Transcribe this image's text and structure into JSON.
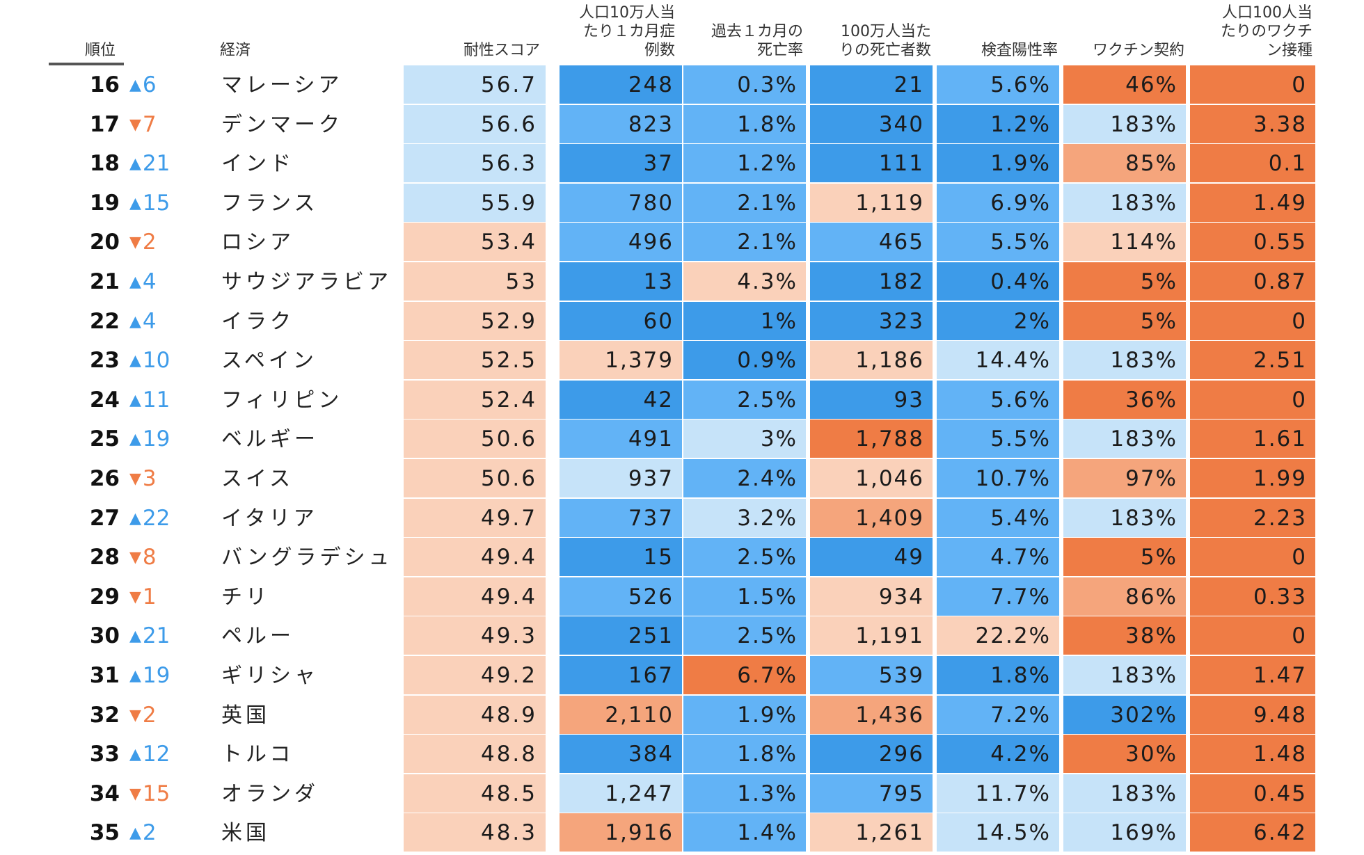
{
  "chart_data": {
    "type": "table",
    "columns": [
      {
        "key": "rank",
        "label": "順位"
      },
      {
        "key": "economy",
        "label": "経済"
      },
      {
        "key": "score",
        "label": "耐性スコア"
      },
      {
        "key": "cases",
        "label": "人口10万人当\nたり１カ月症\n例数"
      },
      {
        "key": "cfr",
        "label": "過去１カ月の\n死亡率"
      },
      {
        "key": "deaths",
        "label": "100万人当た\nりの死亡者数"
      },
      {
        "key": "positivity",
        "label": "検査陽性率"
      },
      {
        "key": "vaccine_deals",
        "label": "ワクチン契約"
      },
      {
        "key": "vaccinations",
        "label": "人口100人当\nたりのワクチ\nン接種"
      }
    ],
    "rows": [
      {
        "rank": "16",
        "change": "6",
        "direction": "up",
        "economy": "マレーシア",
        "score": "56.7",
        "cases": "248",
        "cfr": "0.3%",
        "deaths": "21",
        "positivity": "5.6%",
        "vaccine_deals": "46%",
        "vaccinations": "0",
        "colors": [
          "#c6e3f9",
          "#3d9be9",
          "#62b3f6",
          "#3d9be9",
          "#62b3f6",
          "#ef7c45",
          "#ef7c45"
        ]
      },
      {
        "rank": "17",
        "change": "7",
        "direction": "down",
        "economy": "デンマーク",
        "score": "56.6",
        "cases": "823",
        "cfr": "1.8%",
        "deaths": "340",
        "positivity": "1.2%",
        "vaccine_deals": "183%",
        "vaccinations": "3.38",
        "colors": [
          "#c6e3f9",
          "#62b3f6",
          "#62b3f6",
          "#3d9be9",
          "#3d9be9",
          "#c6e3f9",
          "#ef7c45"
        ]
      },
      {
        "rank": "18",
        "change": "21",
        "direction": "up",
        "economy": "インド",
        "score": "56.3",
        "cases": "37",
        "cfr": "1.2%",
        "deaths": "111",
        "positivity": "1.9%",
        "vaccine_deals": "85%",
        "vaccinations": "0.1",
        "colors": [
          "#c6e3f9",
          "#3d9be9",
          "#62b3f6",
          "#3d9be9",
          "#3d9be9",
          "#f5a57c",
          "#ef7c45"
        ]
      },
      {
        "rank": "19",
        "change": "15",
        "direction": "up",
        "economy": "フランス",
        "score": "55.9",
        "cases": "780",
        "cfr": "2.1%",
        "deaths": "1,119",
        "positivity": "6.9%",
        "vaccine_deals": "183%",
        "vaccinations": "1.49",
        "colors": [
          "#c6e3f9",
          "#62b3f6",
          "#62b3f6",
          "#fad1ba",
          "#62b3f6",
          "#c6e3f9",
          "#ef7c45"
        ]
      },
      {
        "rank": "20",
        "change": "2",
        "direction": "down",
        "economy": "ロシア",
        "score": "53.4",
        "cases": "496",
        "cfr": "2.1%",
        "deaths": "465",
        "positivity": "5.5%",
        "vaccine_deals": "114%",
        "vaccinations": "0.55",
        "colors": [
          "#fad1ba",
          "#62b3f6",
          "#62b3f6",
          "#62b3f6",
          "#62b3f6",
          "#fad1ba",
          "#ef7c45"
        ]
      },
      {
        "rank": "21",
        "change": "4",
        "direction": "up",
        "economy": "サウジアラビア",
        "score": "53",
        "cases": "13",
        "cfr": "4.3%",
        "deaths": "182",
        "positivity": "0.4%",
        "vaccine_deals": "5%",
        "vaccinations": "0.87",
        "colors": [
          "#fad1ba",
          "#3d9be9",
          "#fad1ba",
          "#3d9be9",
          "#3d9be9",
          "#ef7c45",
          "#ef7c45"
        ]
      },
      {
        "rank": "22",
        "change": "4",
        "direction": "up",
        "economy": "イラク",
        "score": "52.9",
        "cases": "60",
        "cfr": "1%",
        "deaths": "323",
        "positivity": "2%",
        "vaccine_deals": "5%",
        "vaccinations": "0",
        "colors": [
          "#fad1ba",
          "#3d9be9",
          "#3d9be9",
          "#3d9be9",
          "#3d9be9",
          "#ef7c45",
          "#ef7c45"
        ]
      },
      {
        "rank": "23",
        "change": "10",
        "direction": "up",
        "economy": "スペイン",
        "score": "52.5",
        "cases": "1,379",
        "cfr": "0.9%",
        "deaths": "1,186",
        "positivity": "14.4%",
        "vaccine_deals": "183%",
        "vaccinations": "2.51",
        "colors": [
          "#fad1ba",
          "#fad1ba",
          "#3d9be9",
          "#fad1ba",
          "#c6e3f9",
          "#c6e3f9",
          "#ef7c45"
        ]
      },
      {
        "rank": "24",
        "change": "11",
        "direction": "up",
        "economy": "フィリピン",
        "score": "52.4",
        "cases": "42",
        "cfr": "2.5%",
        "deaths": "93",
        "positivity": "5.6%",
        "vaccine_deals": "36%",
        "vaccinations": "0",
        "colors": [
          "#fad1ba",
          "#3d9be9",
          "#62b3f6",
          "#3d9be9",
          "#62b3f6",
          "#ef7c45",
          "#ef7c45"
        ]
      },
      {
        "rank": "25",
        "change": "19",
        "direction": "up",
        "economy": "ベルギー",
        "score": "50.6",
        "cases": "491",
        "cfr": "3%",
        "deaths": "1,788",
        "positivity": "5.5%",
        "vaccine_deals": "183%",
        "vaccinations": "1.61",
        "colors": [
          "#fad1ba",
          "#62b3f6",
          "#c6e3f9",
          "#ef7c45",
          "#62b3f6",
          "#c6e3f9",
          "#ef7c45"
        ]
      },
      {
        "rank": "26",
        "change": "3",
        "direction": "down",
        "economy": "スイス",
        "score": "50.6",
        "cases": "937",
        "cfr": "2.4%",
        "deaths": "1,046",
        "positivity": "10.7%",
        "vaccine_deals": "97%",
        "vaccinations": "1.99",
        "colors": [
          "#fad1ba",
          "#c6e3f9",
          "#62b3f6",
          "#fad1ba",
          "#62b3f6",
          "#f5a57c",
          "#ef7c45"
        ]
      },
      {
        "rank": "27",
        "change": "22",
        "direction": "up",
        "economy": "イタリア",
        "score": "49.7",
        "cases": "737",
        "cfr": "3.2%",
        "deaths": "1,409",
        "positivity": "5.4%",
        "vaccine_deals": "183%",
        "vaccinations": "2.23",
        "colors": [
          "#fad1ba",
          "#62b3f6",
          "#c6e3f9",
          "#f5a57c",
          "#62b3f6",
          "#c6e3f9",
          "#ef7c45"
        ]
      },
      {
        "rank": "28",
        "change": "8",
        "direction": "down",
        "economy": "バングラデシュ",
        "score": "49.4",
        "cases": "15",
        "cfr": "2.5%",
        "deaths": "49",
        "positivity": "4.7%",
        "vaccine_deals": "5%",
        "vaccinations": "0",
        "colors": [
          "#fad1ba",
          "#3d9be9",
          "#62b3f6",
          "#3d9be9",
          "#62b3f6",
          "#ef7c45",
          "#ef7c45"
        ]
      },
      {
        "rank": "29",
        "change": "1",
        "direction": "down",
        "economy": "チリ",
        "score": "49.4",
        "cases": "526",
        "cfr": "1.5%",
        "deaths": "934",
        "positivity": "7.7%",
        "vaccine_deals": "86%",
        "vaccinations": "0.33",
        "colors": [
          "#fad1ba",
          "#62b3f6",
          "#62b3f6",
          "#fad1ba",
          "#62b3f6",
          "#f5a57c",
          "#ef7c45"
        ]
      },
      {
        "rank": "30",
        "change": "21",
        "direction": "up",
        "economy": "ペルー",
        "score": "49.3",
        "cases": "251",
        "cfr": "2.5%",
        "deaths": "1,191",
        "positivity": "22.2%",
        "vaccine_deals": "38%",
        "vaccinations": "0",
        "colors": [
          "#fad1ba",
          "#3d9be9",
          "#62b3f6",
          "#fad1ba",
          "#fad1ba",
          "#ef7c45",
          "#ef7c45"
        ]
      },
      {
        "rank": "31",
        "change": "19",
        "direction": "up",
        "economy": "ギリシャ",
        "score": "49.2",
        "cases": "167",
        "cfr": "6.7%",
        "deaths": "539",
        "positivity": "1.8%",
        "vaccine_deals": "183%",
        "vaccinations": "1.47",
        "colors": [
          "#fad1ba",
          "#3d9be9",
          "#ef7c45",
          "#62b3f6",
          "#3d9be9",
          "#c6e3f9",
          "#ef7c45"
        ]
      },
      {
        "rank": "32",
        "change": "2",
        "direction": "down",
        "economy": "英国",
        "score": "48.9",
        "cases": "2,110",
        "cfr": "1.9%",
        "deaths": "1,436",
        "positivity": "7.2%",
        "vaccine_deals": "302%",
        "vaccinations": "9.48",
        "colors": [
          "#fad1ba",
          "#f5a57c",
          "#62b3f6",
          "#f5a57c",
          "#62b3f6",
          "#3d9be9",
          "#ef7c45"
        ]
      },
      {
        "rank": "33",
        "change": "12",
        "direction": "up",
        "economy": "トルコ",
        "score": "48.8",
        "cases": "384",
        "cfr": "1.8%",
        "deaths": "296",
        "positivity": "4.2%",
        "vaccine_deals": "30%",
        "vaccinations": "1.48",
        "colors": [
          "#fad1ba",
          "#3d9be9",
          "#62b3f6",
          "#3d9be9",
          "#3d9be9",
          "#ef7c45",
          "#ef7c45"
        ]
      },
      {
        "rank": "34",
        "change": "15",
        "direction": "down",
        "economy": "オランダ",
        "score": "48.5",
        "cases": "1,247",
        "cfr": "1.3%",
        "deaths": "795",
        "positivity": "11.7%",
        "vaccine_deals": "183%",
        "vaccinations": "0.45",
        "colors": [
          "#fad1ba",
          "#c6e3f9",
          "#62b3f6",
          "#62b3f6",
          "#c6e3f9",
          "#c6e3f9",
          "#ef7c45"
        ]
      },
      {
        "rank": "35",
        "change": "2",
        "direction": "up",
        "economy": "米国",
        "score": "48.3",
        "cases": "1,916",
        "cfr": "1.4%",
        "deaths": "1,261",
        "positivity": "14.5%",
        "vaccine_deals": "169%",
        "vaccinations": "6.42",
        "colors": [
          "#fad1ba",
          "#f5a57c",
          "#62b3f6",
          "#fad1ba",
          "#c6e3f9",
          "#c6e3f9",
          "#ef7c45"
        ]
      }
    ]
  }
}
